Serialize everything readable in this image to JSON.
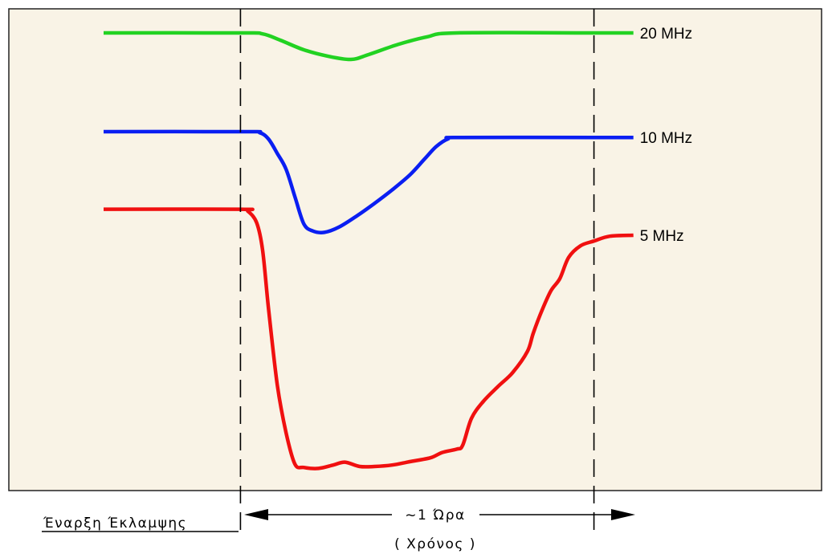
{
  "colors": {
    "background": "#f9f3e6",
    "frame": "#222222",
    "green": "#22d222",
    "blue": "#0a1ef2",
    "red": "#f01010"
  },
  "chart_data": {
    "type": "line",
    "title": "",
    "xlabel": "( Χρόνος )",
    "ylabel": "",
    "grid": false,
    "legend": "none",
    "annotations": {
      "flare_start": "Έναρξη Έκλαμψης",
      "duration": "~1 Ώρα"
    },
    "x_range": [
      0,
      100
    ],
    "y_range": [
      0,
      100
    ],
    "flare_markers_x": [
      23.25,
      83.3
    ],
    "series": [
      {
        "name": "20 MHz",
        "color": "#22d222",
        "points": [
          [
            0,
            95
          ],
          [
            23.25,
            95
          ],
          [
            27,
            94.8
          ],
          [
            30,
            93.5
          ],
          [
            34,
            91.5
          ],
          [
            38,
            90.2
          ],
          [
            42,
            89.5
          ],
          [
            45,
            90.5
          ],
          [
            50,
            92.6
          ],
          [
            55,
            94.2
          ],
          [
            60,
            95
          ],
          [
            83.3,
            95
          ],
          [
            90,
            95
          ]
        ]
      },
      {
        "name": "10 MHz",
        "color": "#0a1ef2",
        "points": [
          [
            0,
            74.5
          ],
          [
            24,
            74.5
          ],
          [
            26.5,
            74.3
          ],
          [
            28,
            73
          ],
          [
            29.5,
            70
          ],
          [
            31,
            66.7
          ],
          [
            32.5,
            61
          ],
          [
            34,
            55.4
          ],
          [
            35.5,
            53.9
          ],
          [
            37.5,
            53.6
          ],
          [
            40,
            54.7
          ],
          [
            43,
            57
          ],
          [
            46,
            59.6
          ],
          [
            49,
            62.4
          ],
          [
            52,
            65.5
          ],
          [
            54.5,
            68.8
          ],
          [
            56.5,
            71.4
          ],
          [
            58.5,
            73
          ],
          [
            60.5,
            73.3
          ],
          [
            83.3,
            73.3
          ],
          [
            90,
            73.3
          ]
        ]
      },
      {
        "name": "5 MHz",
        "color": "#f01010",
        "points": [
          [
            0,
            58.4
          ],
          [
            23.25,
            58.4
          ],
          [
            24.5,
            58
          ],
          [
            26,
            55.6
          ],
          [
            27,
            50
          ],
          [
            28,
            38
          ],
          [
            29.5,
            22
          ],
          [
            31,
            12
          ],
          [
            32.5,
            5.5
          ],
          [
            34,
            4.8
          ],
          [
            36.5,
            4.6
          ],
          [
            39,
            5.3
          ],
          [
            41,
            5.9
          ],
          [
            43.5,
            5.0
          ],
          [
            46,
            5.0
          ],
          [
            49,
            5.3
          ],
          [
            52,
            6.0
          ],
          [
            55.5,
            6.8
          ],
          [
            57.5,
            7.9
          ],
          [
            60,
            8.6
          ],
          [
            61,
            9.4
          ],
          [
            62.5,
            15
          ],
          [
            64.5,
            18.5
          ],
          [
            67,
            21.6
          ],
          [
            69.5,
            24.5
          ],
          [
            72,
            28.9
          ],
          [
            73,
            32.7
          ],
          [
            74.5,
            37.5
          ],
          [
            76,
            41.5
          ],
          [
            77.5,
            44
          ],
          [
            79,
            48.4
          ],
          [
            81,
            50.8
          ],
          [
            83.3,
            51.8
          ],
          [
            86,
            52.8
          ],
          [
            90,
            53
          ]
        ]
      }
    ]
  }
}
